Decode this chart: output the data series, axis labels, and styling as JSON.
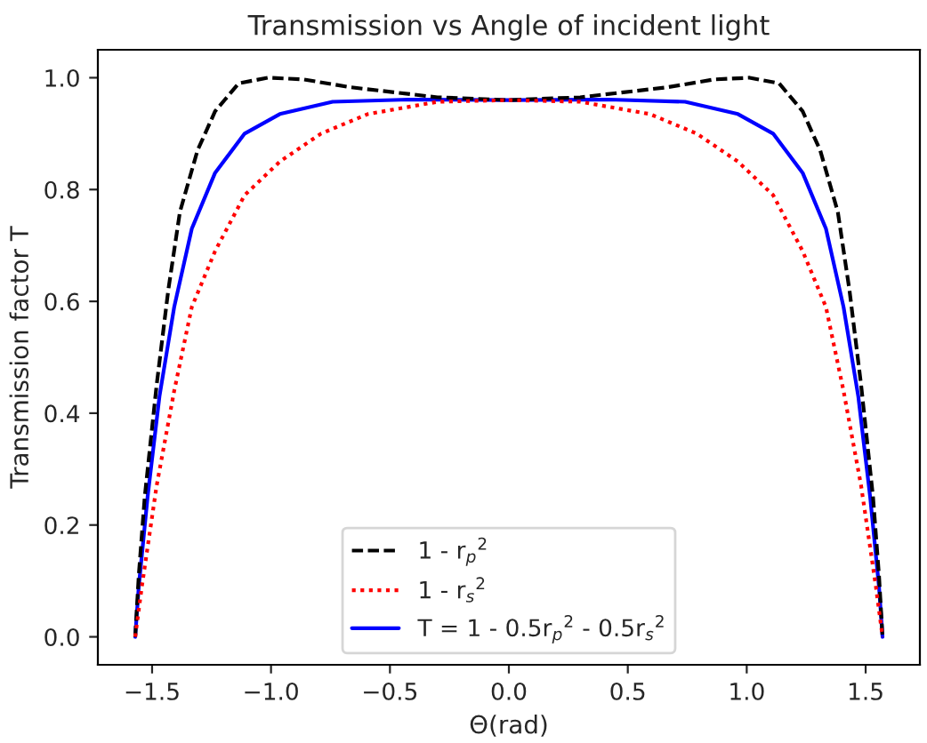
{
  "chart_data": {
    "type": "line",
    "title": "Transmission vs Angle of incident light",
    "xlabel": "Θ(rad)",
    "ylabel": "Transmission factor T",
    "xlim": [
      -1.728,
      1.728
    ],
    "ylim": [
      -0.05,
      1.05
    ],
    "xticks": [
      {
        "value": -1.5,
        "label": "−1.5"
      },
      {
        "value": -1.0,
        "label": "−1.0"
      },
      {
        "value": -0.5,
        "label": "−0.5"
      },
      {
        "value": 0.0,
        "label": "0.0"
      },
      0.5,
      {
        "value": 1.0,
        "label": "1.0"
      },
      1.5
    ],
    "yticks": [
      {
        "value": 0.0,
        "label": "0.0"
      },
      0.2,
      0.4,
      0.6,
      0.8,
      {
        "value": 1.0,
        "label": "1.0"
      }
    ],
    "grid": false,
    "legend": "bottom",
    "series": [
      {
        "name": "1 - r$_{p}$$^{2}$",
        "color": "#000000",
        "line_style": "dashed",
        "x": [
          -1.571,
          -1.556,
          -1.531,
          -1.481,
          -1.432,
          -1.383,
          -1.309,
          -1.235,
          -1.136,
          -1.012,
          -0.864,
          -0.667,
          -0.3,
          0.0,
          0.3,
          0.667,
          0.864,
          1.012,
          1.136,
          1.235,
          1.309,
          1.383,
          1.432,
          1.481,
          1.531,
          1.556,
          1.571
        ],
        "values": [
          0.0,
          0.11,
          0.25,
          0.45,
          0.62,
          0.76,
          0.87,
          0.94,
          0.99,
          1.0,
          0.997,
          0.983,
          0.965,
          0.96,
          0.965,
          0.983,
          0.997,
          1.0,
          0.99,
          0.94,
          0.87,
          0.76,
          0.62,
          0.45,
          0.25,
          0.11,
          0.0
        ]
      },
      {
        "name": "1 - r$_{s}$$^{2}$",
        "color": "#ff0000",
        "line_style": "dotted",
        "x": [
          -1.571,
          -1.543,
          -1.481,
          -1.407,
          -1.333,
          -1.235,
          -1.111,
          -0.963,
          -0.79,
          -0.593,
          -0.3,
          0.0,
          0.3,
          0.593,
          0.79,
          0.963,
          1.111,
          1.235,
          1.333,
          1.407,
          1.481,
          1.543,
          1.571
        ],
        "values": [
          0.0,
          0.09,
          0.27,
          0.44,
          0.59,
          0.69,
          0.79,
          0.85,
          0.9,
          0.935,
          0.957,
          0.96,
          0.957,
          0.935,
          0.9,
          0.85,
          0.79,
          0.69,
          0.59,
          0.44,
          0.27,
          0.09,
          0.0
        ]
      },
      {
        "name": "T = 1 - 0.5r$_{p}$$^{2}$ - 0.5r$_{s}$$^{2}$",
        "color": "#0000ff",
        "line_style": "solid",
        "x": [
          -1.571,
          -1.556,
          -1.519,
          -1.469,
          -1.407,
          -1.333,
          -1.235,
          -1.111,
          -0.963,
          -0.741,
          -0.42,
          0.0,
          0.42,
          0.741,
          0.963,
          1.111,
          1.235,
          1.333,
          1.407,
          1.469,
          1.519,
          1.556,
          1.571
        ],
        "values": [
          0.0,
          0.09,
          0.25,
          0.43,
          0.59,
          0.73,
          0.83,
          0.9,
          0.935,
          0.957,
          0.961,
          0.96,
          0.961,
          0.957,
          0.935,
          0.9,
          0.83,
          0.73,
          0.59,
          0.43,
          0.25,
          0.09,
          0.0
        ]
      }
    ]
  }
}
